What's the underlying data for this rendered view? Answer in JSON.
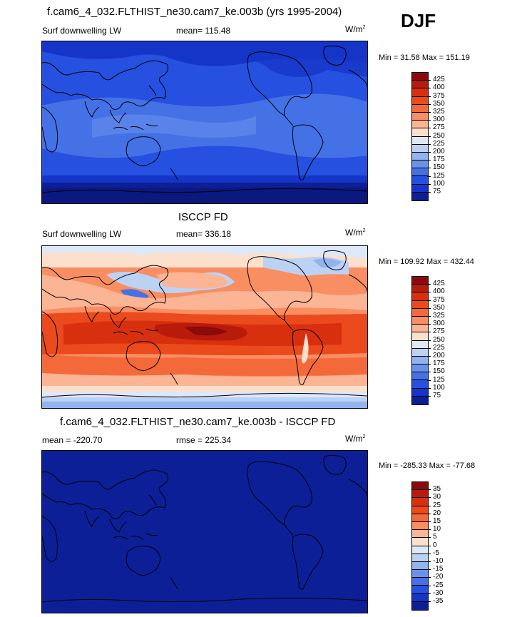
{
  "season": "DJF",
  "panel1": {
    "title": "f.cam6_4_032.FLTHIST_ne30.cam7_ke.003b (yrs 1995-2004)",
    "left_label": "Surf downwelling LW",
    "center_label": "mean= 115.48",
    "units": "W/m",
    "units_sup": "2",
    "minmax": "Min =  31.58 Max = 151.19"
  },
  "panel2": {
    "title": "ISCCP FD",
    "left_label": "Surf downwelling LW",
    "center_label": "mean= 336.18",
    "units": "W/m",
    "units_sup": "2",
    "minmax": "Min = 109.92 Max = 432.44"
  },
  "panel3": {
    "title": "f.cam6_4_032.FLTHIST_ne30.cam7_ke.003b - ISCCP FD",
    "left_label": "mean = -220.70",
    "center_label": "rmse = 225.34",
    "units": "W/m",
    "units_sup": "2",
    "minmax": "Min = -285.33 Max = -77.68"
  },
  "colorbar_abs": {
    "labels": [
      "425",
      "400",
      "375",
      "350",
      "325",
      "300",
      "275",
      "250",
      "225",
      "200",
      "175",
      "150",
      "125",
      "100",
      "75"
    ],
    "colors": [
      "#8b0a0a",
      "#b81a0c",
      "#d8300f",
      "#ea4a1c",
      "#f4693a",
      "#f88e62",
      "#fbb494",
      "#fde0cc",
      "#dde8f8",
      "#bcd2f4",
      "#93b3ef",
      "#6a92ea",
      "#4571e6",
      "#2550e0",
      "#1535c8",
      "#0d1f96"
    ]
  },
  "colorbar_diff": {
    "labels": [
      "35",
      "30",
      "25",
      "20",
      "15",
      "10",
      "5",
      "0",
      "-5",
      "-10",
      "-15",
      "-20",
      "-25",
      "-30",
      "-35"
    ],
    "colors": [
      "#8b0a0a",
      "#b81a0c",
      "#d8300f",
      "#ea4a1c",
      "#f4693a",
      "#f88e62",
      "#fbb494",
      "#fde0cc",
      "#dde8f8",
      "#bcd2f4",
      "#93b3ef",
      "#6a92ea",
      "#4571e6",
      "#2550e0",
      "#1535c8",
      "#0d1f96"
    ]
  }
}
